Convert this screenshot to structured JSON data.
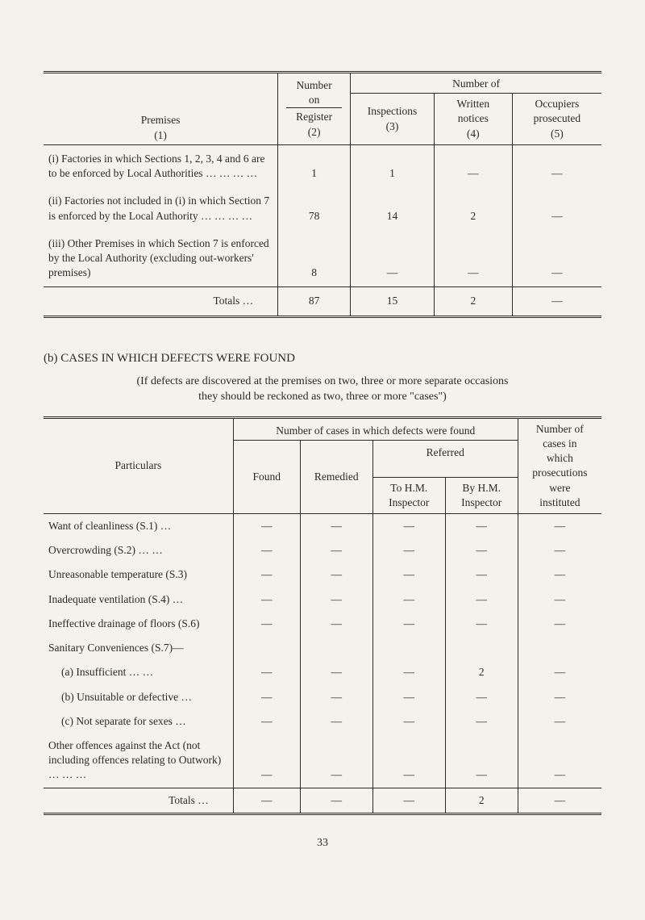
{
  "dash": "—",
  "table1": {
    "head": {
      "premises": "Premises",
      "col1": "(1)",
      "num_on_register_1": "Number",
      "num_on_register_2": "on",
      "num_on_register_3": "Register",
      "col2": "(2)",
      "number_of": "Number of",
      "inspections": "Inspections",
      "col3": "(3)",
      "written_notices_1": "Written",
      "written_notices_2": "notices",
      "col4": "(4)",
      "occupiers_1": "Occupiers",
      "occupiers_2": "prosecuted",
      "col5": "(5)"
    },
    "rows": [
      {
        "label": "(i) Factories in which Sections 1, 2, 3, 4 and 6 are to be enforced by Local Authorities    …    …    …    …",
        "c2": "1",
        "c3": "1",
        "c4": "—",
        "c5": "—"
      },
      {
        "label": "(ii) Factories not included in (i) in which Section 7 is enforced by the Local Authority    …    …    …    …",
        "c2": "78",
        "c3": "14",
        "c4": "2",
        "c5": "—"
      },
      {
        "label": "(iii) Other Premises in which Section 7 is enforced by the Local Authority (excluding out-workers' premises)",
        "c2": "8",
        "c3": "—",
        "c4": "—",
        "c5": "—"
      }
    ],
    "totals": {
      "label": "Totals    …",
      "c2": "87",
      "c3": "15",
      "c4": "2",
      "c5": "—"
    }
  },
  "section_b": {
    "heading": "(b) CASES IN WHICH DEFECTS WERE FOUND",
    "note1": "(If defects are discovered at the premises on two, three or more separate occasions",
    "note2": "they should be reckoned as two, three or more \"cases\")"
  },
  "table2": {
    "head": {
      "particulars": "Particulars",
      "group_found": "Number of cases in which defects were found",
      "found": "Found",
      "remedied": "Remedied",
      "referred": "Referred",
      "to_hm": "To H.M. Inspector",
      "by_hm": "By H.M. Inspector",
      "prosec1": "Number of",
      "prosec2": "cases in",
      "prosec3": "which",
      "prosec4": "prosecutions",
      "prosec5": "were",
      "prosec6": "instituted"
    },
    "rows": [
      {
        "label": "Want of cleanliness (S.1)    …",
        "c": [
          "—",
          "—",
          "—",
          "—",
          "—"
        ]
      },
      {
        "label": "Overcrowding (S.2)    …    …",
        "c": [
          "—",
          "—",
          "—",
          "—",
          "—"
        ]
      },
      {
        "label": "Unreasonable temperature (S.3)",
        "c": [
          "—",
          "—",
          "—",
          "—",
          "—"
        ]
      },
      {
        "label": "Inadequate ventilation (S.4)    …",
        "c": [
          "—",
          "—",
          "—",
          "—",
          "—"
        ]
      },
      {
        "label": "Ineffective drainage of floors (S.6)",
        "c": [
          "—",
          "—",
          "—",
          "—",
          "—"
        ]
      },
      {
        "label": "Sanitary Conveniences (S.7)—",
        "c": [
          "",
          "",
          "",
          "",
          ""
        ]
      },
      {
        "label": "(a)  Insufficient    …    …",
        "indent": true,
        "c": [
          "—",
          "—",
          "—",
          "2",
          "—"
        ]
      },
      {
        "label": "(b)  Unsuitable or defective  …",
        "indent": true,
        "c": [
          "—",
          "—",
          "—",
          "—",
          "—"
        ]
      },
      {
        "label": "(c)  Not separate for sexes   …",
        "indent": true,
        "c": [
          "—",
          "—",
          "—",
          "—",
          "—"
        ]
      },
      {
        "label": "Other offences against the Act (not including offences relating to Outwork)    …    …    …",
        "c": [
          "—",
          "—",
          "—",
          "—",
          "—"
        ]
      }
    ],
    "totals": {
      "label": "Totals    …",
      "c": [
        "—",
        "—",
        "—",
        "2",
        "—"
      ]
    }
  },
  "page_number": "33"
}
